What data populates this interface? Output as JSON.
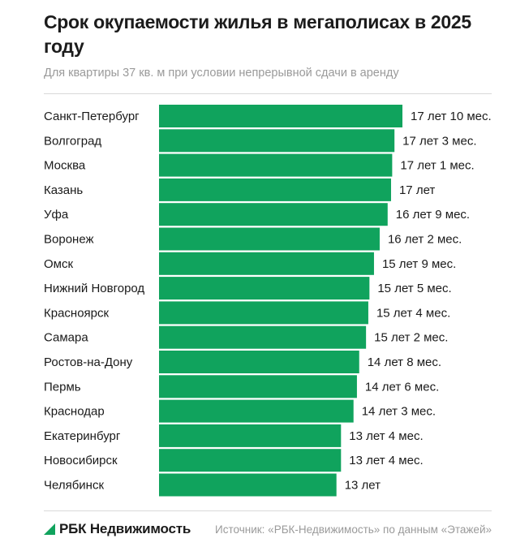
{
  "header": {
    "title": "Срок окупаемости жилья в мегаполисах в 2025 году",
    "subtitle": "Для квартиры 37 кв. м при условии непрерывной сдачи в аренду"
  },
  "footer": {
    "brand": "РБК Недвижимость",
    "source": "Источник: «РБК-Недвижимость» по данным «Этажей»"
  },
  "colors": {
    "bar": "#10a35d",
    "brand_mark": "#10a35d"
  },
  "chart_data": {
    "type": "bar",
    "orientation": "horizontal",
    "categories": [
      "Санкт-Петербург",
      "Волгоград",
      "Москва",
      "Казань",
      "Уфа",
      "Воронеж",
      "Омск",
      "Нижний Новгород",
      "Красноярск",
      "Самара",
      "Ростов-на-Дону",
      "Пермь",
      "Краснодар",
      "Екатеринбург",
      "Новосибирск",
      "Челябинск"
    ],
    "values_months": [
      214,
      207,
      205,
      204,
      201,
      194,
      189,
      185,
      184,
      182,
      176,
      174,
      171,
      160,
      160,
      156
    ],
    "value_labels": [
      "17 лет 10 мес.",
      "17 лет 3 мес.",
      "17 лет 1 мес.",
      "17 лет",
      "16 лет 9 мес.",
      "16 лет 2 мес.",
      "15 лет 9 мес.",
      "15 лет 5 мес.",
      "15 лет 4 мес.",
      "15 лет 2 мес.",
      "14 лет 8 мес.",
      "14 лет 6 мес.",
      "14 лет 3 мес.",
      "13 лет 4 мес.",
      "13 лет 4 мес.",
      "13 лет"
    ],
    "legend": "none",
    "grid": false
  }
}
